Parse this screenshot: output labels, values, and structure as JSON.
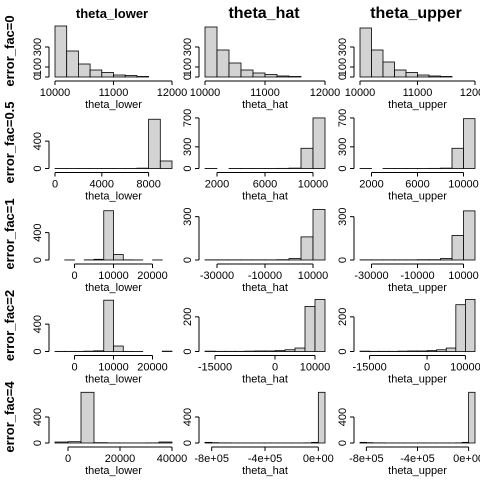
{
  "column_titles": [
    "theta_lower",
    "theta_hat",
    "theta_upper"
  ],
  "row_labels": [
    "error_fac=0",
    "error_fac=0.5",
    "error_fac=1",
    "error_fac=2",
    "error_fac=4"
  ],
  "chart_data": [
    {
      "type": "histogram",
      "xlabel": "theta_lower",
      "bins": [
        10000,
        10200,
        10400,
        10600,
        10800,
        11000,
        11200,
        11400,
        11600
      ],
      "values": [
        510,
        260,
        130,
        70,
        45,
        20,
        15,
        5
      ],
      "xlim": [
        10000,
        12000
      ],
      "xticks": [
        10000,
        11000,
        12000
      ],
      "ylim": [
        0,
        520
      ],
      "yticks": [
        0,
        100,
        300
      ],
      "color": "#d3d3d3"
    },
    {
      "type": "histogram",
      "xlabel": "theta_hat",
      "bins": [
        10000,
        10200,
        10400,
        10600,
        10800,
        11000,
        11200,
        11400,
        11600
      ],
      "values": [
        500,
        270,
        140,
        70,
        40,
        25,
        10,
        5
      ],
      "xlim": [
        10000,
        12000
      ],
      "xticks": [
        10000,
        11000,
        12000
      ],
      "ylim": [
        0,
        520
      ],
      "yticks": [
        0,
        100,
        300
      ],
      "color": "#d3d3d3"
    },
    {
      "type": "histogram",
      "xlabel": "theta_upper",
      "bins": [
        10000,
        10200,
        10400,
        10600,
        10800,
        11000,
        11200,
        11400,
        11600
      ],
      "values": [
        490,
        270,
        150,
        70,
        45,
        20,
        10,
        5
      ],
      "xlim": [
        10000,
        12000
      ],
      "xticks": [
        10000,
        11000,
        12000
      ],
      "ylim": [
        0,
        520
      ],
      "yticks": [
        0,
        100,
        300
      ],
      "color": "#d3d3d3"
    },
    {
      "type": "histogram",
      "xlabel": "theta_lower",
      "bins": [
        0,
        1000,
        2000,
        3000,
        4000,
        5000,
        6000,
        7000,
        8000,
        9000,
        10000
      ],
      "values": [
        1,
        1,
        1,
        1,
        1,
        1,
        1,
        5,
        720,
        110
      ],
      "xlim": [
        0,
        10000
      ],
      "xticks": [
        0,
        4000,
        8000
      ],
      "ylim": [
        0,
        760
      ],
      "yticks": [
        0,
        400
      ],
      "color": "#d3d3d3"
    },
    {
      "type": "histogram",
      "xlabel": "theta_hat",
      "bins": [
        1000,
        2000,
        3000,
        4000,
        5000,
        6000,
        7000,
        8000,
        9000,
        10000,
        11000
      ],
      "values": [
        1,
        0,
        1,
        1,
        1,
        1,
        2,
        5,
        280,
        700
      ],
      "xlim": [
        1000,
        11000
      ],
      "xticks": [
        2000,
        6000,
        10000
      ],
      "ylim": [
        0,
        720
      ],
      "yticks": [
        0,
        300,
        700
      ],
      "color": "#d3d3d3"
    },
    {
      "type": "histogram",
      "xlabel": "theta_upper",
      "bins": [
        1000,
        2000,
        3000,
        4000,
        5000,
        6000,
        7000,
        8000,
        9000,
        10000,
        11000
      ],
      "values": [
        1,
        0,
        1,
        1,
        1,
        1,
        2,
        5,
        280,
        690
      ],
      "xlim": [
        1000,
        11000
      ],
      "xticks": [
        2000,
        6000,
        10000
      ],
      "ylim": [
        0,
        720
      ],
      "yticks": [
        0,
        300,
        700
      ],
      "color": "#d3d3d3"
    },
    {
      "type": "histogram",
      "xlabel": "theta_lower",
      "bins": [
        -2500,
        0,
        2500,
        5000,
        7500,
        10000,
        12500,
        15000,
        17500,
        20000,
        22500
      ],
      "values": [
        1,
        0,
        2,
        10,
        720,
        80,
        2,
        1,
        0,
        1
      ],
      "xlim": [
        -5000,
        25000
      ],
      "xticks": [
        0,
        10000,
        20000
      ],
      "ylim": [
        0,
        760
      ],
      "yticks": [
        0,
        400
      ],
      "color": "#d3d3d3"
    },
    {
      "type": "histogram",
      "xlabel": "theta_hat",
      "bins": [
        -35000,
        -30000,
        -25000,
        -20000,
        -15000,
        -10000,
        -5000,
        0,
        5000,
        10000,
        15000
      ],
      "values": [
        1,
        1,
        1,
        1,
        1,
        1,
        2,
        10,
        160,
        350
      ],
      "xlim": [
        -35000,
        15000
      ],
      "xticks": [
        -30000,
        -10000,
        10000
      ],
      "ylim": [
        0,
        360
      ],
      "yticks": [
        0,
        300
      ],
      "color": "#d3d3d3"
    },
    {
      "type": "histogram",
      "xlabel": "theta_upper",
      "bins": [
        -35000,
        -30000,
        -25000,
        -20000,
        -15000,
        -10000,
        -5000,
        0,
        5000,
        10000,
        15000
      ],
      "values": [
        1,
        1,
        1,
        1,
        1,
        2,
        2,
        10,
        170,
        340
      ],
      "xlim": [
        -35000,
        15000
      ],
      "xticks": [
        -30000,
        -10000,
        10000
      ],
      "ylim": [
        0,
        360
      ],
      "yticks": [
        0,
        300
      ],
      "color": "#d3d3d3"
    },
    {
      "type": "histogram",
      "xlabel": "theta_lower",
      "bins": [
        -5000,
        -2500,
        0,
        2500,
        5000,
        7500,
        10000,
        12500,
        15000,
        17500,
        20000,
        22500,
        25000
      ],
      "values": [
        2,
        2,
        2,
        5,
        10,
        750,
        80,
        2,
        1,
        0,
        0,
        5
      ],
      "xlim": [
        -5000,
        25000
      ],
      "xticks": [
        0,
        10000,
        20000
      ],
      "ylim": [
        0,
        760
      ],
      "yticks": [
        0,
        400
      ],
      "color": "#d3d3d3"
    },
    {
      "type": "histogram",
      "xlabel": "theta_hat",
      "bins": [
        -17500,
        -15000,
        -12500,
        -10000,
        -7500,
        -5000,
        -2500,
        0,
        2500,
        5000,
        7500,
        10000,
        12500
      ],
      "values": [
        2,
        1,
        1,
        1,
        2,
        3,
        3,
        5,
        10,
        20,
        260,
        300
      ],
      "xlim": [
        -17500,
        12500
      ],
      "xticks": [
        -15000,
        0,
        10000
      ],
      "ylim": [
        0,
        300
      ],
      "yticks": [
        0,
        200
      ],
      "color": "#d3d3d3"
    },
    {
      "type": "histogram",
      "xlabel": "theta_upper",
      "bins": [
        -17500,
        -15000,
        -12500,
        -10000,
        -7500,
        -5000,
        -2500,
        0,
        2500,
        5000,
        7500,
        10000,
        12500
      ],
      "values": [
        2,
        1,
        1,
        1,
        2,
        3,
        3,
        5,
        10,
        20,
        270,
        300
      ],
      "xlim": [
        -17500,
        12500
      ],
      "xticks": [
        -15000,
        0,
        10000
      ],
      "ylim": [
        0,
        300
      ],
      "yticks": [
        0,
        200
      ],
      "color": "#d3d3d3"
    },
    {
      "type": "histogram",
      "xlabel": "theta_lower",
      "bins": [
        -5000,
        0,
        5000,
        10000,
        15000,
        20000,
        25000,
        30000,
        35000,
        40000
      ],
      "values": [
        15,
        20,
        780,
        5,
        2,
        1,
        1,
        2,
        15
      ],
      "xlim": [
        -5000,
        40000
      ],
      "xticks": [
        0,
        20000,
        40000
      ],
      "ylim": [
        0,
        800
      ],
      "yticks": [
        0,
        400
      ],
      "color": "#d3d3d3"
    },
    {
      "type": "histogram",
      "xlabel": "theta_hat",
      "bins": [
        -850000,
        -800000,
        -750000,
        -700000,
        -650000,
        -600000,
        -550000,
        -500000,
        -450000,
        -400000,
        -350000,
        -300000,
        -250000,
        -200000,
        -150000,
        -100000,
        -50000,
        0,
        50000
      ],
      "values": [
        10,
        5,
        2,
        2,
        1,
        1,
        1,
        1,
        1,
        1,
        1,
        1,
        1,
        1,
        1,
        2,
        10,
        780
      ],
      "xlim": [
        -850000,
        50000
      ],
      "xticks": [
        {
          "value": -800000,
          "label": "-8e+05"
        },
        {
          "value": -400000,
          "label": "-4e+05"
        },
        {
          "value": 0,
          "label": "0e+00"
        }
      ],
      "ylim": [
        0,
        800
      ],
      "yticks": [
        0,
        400
      ],
      "color": "#d3d3d3"
    },
    {
      "type": "histogram",
      "xlabel": "theta_upper",
      "bins": [
        -850000,
        -800000,
        -750000,
        -700000,
        -650000,
        -600000,
        -550000,
        -500000,
        -450000,
        -400000,
        -350000,
        -300000,
        -250000,
        -200000,
        -150000,
        -100000,
        -50000,
        0,
        50000
      ],
      "values": [
        10,
        5,
        2,
        2,
        1,
        1,
        1,
        1,
        1,
        1,
        1,
        1,
        1,
        1,
        1,
        2,
        10,
        780
      ],
      "xlim": [
        -850000,
        50000
      ],
      "xticks": [
        {
          "value": -800000,
          "label": "-8e+05"
        },
        {
          "value": -400000,
          "label": "-4e+05"
        },
        {
          "value": 0,
          "label": "0e+00"
        }
      ],
      "ylim": [
        0,
        800
      ],
      "yticks": [
        0,
        400
      ],
      "color": "#d3d3d3"
    }
  ]
}
